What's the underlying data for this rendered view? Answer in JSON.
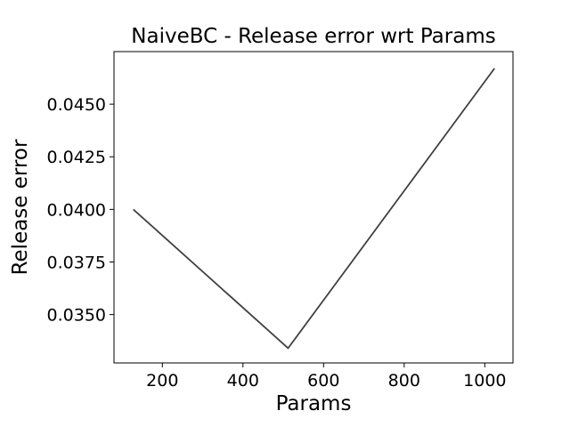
{
  "chart_data": {
    "type": "line",
    "title": "NaiveBC - Release error wrt Params",
    "xlabel": "Params",
    "ylabel": "Release error",
    "xlim": [
      80,
      1070
    ],
    "ylim": [
      0.0327,
      0.0475
    ],
    "xticks": [
      200,
      400,
      600,
      800,
      1000
    ],
    "yticks": [
      0.035,
      0.0375,
      0.04,
      0.0425,
      0.045
    ],
    "xtick_labels": [
      "200",
      "400",
      "600",
      "800",
      "1000"
    ],
    "ytick_labels": [
      "0.0350",
      "0.0375",
      "0.0400",
      "0.0425",
      "0.0450"
    ],
    "grid": false,
    "series": [
      {
        "color": "#404040",
        "x": [
          128,
          512,
          1024
        ],
        "y": [
          0.04,
          0.0334,
          0.0467
        ]
      }
    ]
  }
}
